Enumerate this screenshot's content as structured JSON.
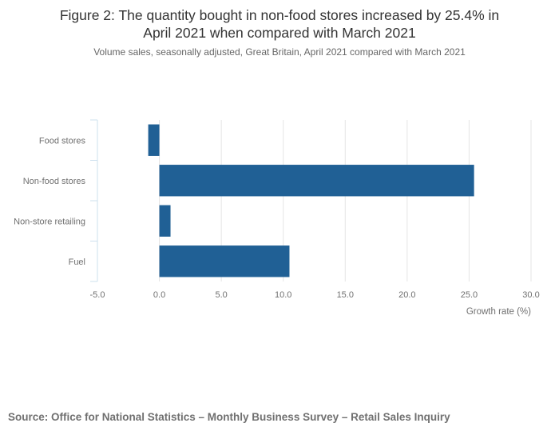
{
  "header": {
    "title_line1": "Figure 2: The quantity bought in non-food stores increased by 25.4% in",
    "title_line2": "April 2021 when compared with March 2021",
    "subtitle": "Volume sales, seasonally adjusted, Great Britain, April 2021 compared with March 2021"
  },
  "chart_data": {
    "type": "bar",
    "orientation": "horizontal",
    "title": "Figure 2: The quantity bought in non-food stores increased by 25.4% in April 2021 when compared with March 2021",
    "categories": [
      "Food stores",
      "Non-food stores",
      "Non-store retailing",
      "Fuel"
    ],
    "values": [
      -0.9,
      25.4,
      0.9,
      10.5
    ],
    "xlabel": "Growth rate (%)",
    "ylabel": "",
    "xlim": [
      -5.0,
      30.0
    ],
    "xticks": [
      "-5.0",
      "0.0",
      "5.0",
      "10.0",
      "15.0",
      "20.0",
      "25.0",
      "30.0"
    ],
    "xtick_values": [
      -5,
      0,
      5,
      10,
      15,
      20,
      25,
      30
    ],
    "grid": true,
    "bar_color": "#206095",
    "grid_color": "#e4e4e4",
    "axis_color": "#cde0ee"
  },
  "footer": {
    "source": "Source: Office for National Statistics – Monthly Business Survey – Retail Sales Inquiry"
  }
}
